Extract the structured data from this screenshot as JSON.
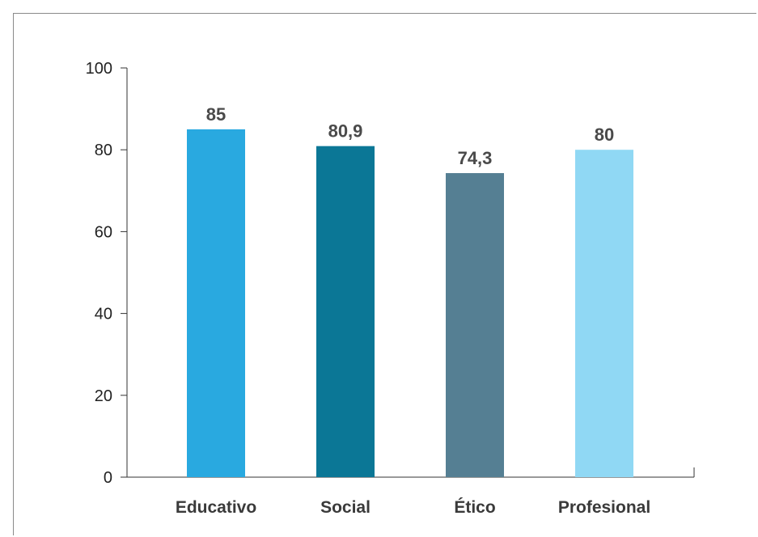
{
  "chart_data": {
    "type": "bar",
    "categories": [
      "Educativo",
      "Social",
      "Ético",
      "Profesional"
    ],
    "values": [
      85,
      80.9,
      74.3,
      80
    ],
    "value_labels": [
      "85",
      "80,9",
      "74,3",
      "80"
    ],
    "colors": [
      "#29A9E0",
      "#0B7796",
      "#557F93",
      "#90D8F4"
    ],
    "ylim": [
      0,
      100
    ],
    "yticks": [
      0,
      20,
      40,
      60,
      80,
      100
    ],
    "title": "",
    "xlabel": "",
    "ylabel": "",
    "grid": false
  }
}
